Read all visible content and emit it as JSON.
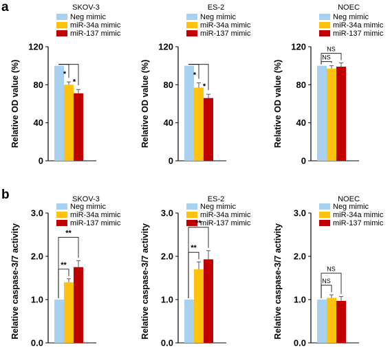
{
  "panel_labels": [
    "a",
    "b"
  ],
  "chart_data": [
    {
      "type": "bar",
      "panel": "a",
      "title": "SKOV-3",
      "ylabel": "Relative OD value (%)",
      "ylim": [
        0,
        120
      ],
      "yticks": [
        "0",
        "40",
        "80",
        "120"
      ],
      "tick_values": [
        0,
        40,
        80,
        120
      ],
      "legend": [
        "Neg mimic",
        "miR-34a mimic",
        "miR-137 mimic"
      ],
      "series": [
        {
          "name": "Neg mimic",
          "values": [
            100
          ],
          "error": [
            0
          ]
        },
        {
          "name": "miR-34a mimic",
          "values": [
            80
          ],
          "error": [
            3
          ]
        },
        {
          "name": "miR-137 mimic",
          "values": [
            71
          ],
          "error": [
            4
          ]
        }
      ],
      "annotations": [
        {
          "text": "*",
          "from": 0,
          "to": 1
        },
        {
          "text": "*",
          "from": 0,
          "to": 2
        }
      ]
    },
    {
      "type": "bar",
      "panel": "a",
      "title": "ES-2",
      "ylabel": "Relative OD value (%)",
      "ylim": [
        0,
        120
      ],
      "yticks": [
        "0",
        "40",
        "80",
        "120"
      ],
      "tick_values": [
        0,
        40,
        80,
        120
      ],
      "legend": [
        "Neg mimic",
        "miR-34a mimic",
        "miR-137 mimic"
      ],
      "series": [
        {
          "name": "Neg mimic",
          "values": [
            100
          ],
          "error": [
            0
          ]
        },
        {
          "name": "miR-34a mimic",
          "values": [
            77
          ],
          "error": [
            5
          ]
        },
        {
          "name": "miR-137 mimic",
          "values": [
            66
          ],
          "error": [
            4
          ]
        }
      ],
      "annotations": [
        {
          "text": "*",
          "from": 0,
          "to": 1
        },
        {
          "text": "*",
          "from": 0,
          "to": 2
        }
      ]
    },
    {
      "type": "bar",
      "panel": "a",
      "title": "NOEC",
      "ylabel": "Relative OD value (%)",
      "ylim": [
        0,
        120
      ],
      "yticks": [
        "0",
        "40",
        "80",
        "120"
      ],
      "tick_values": [
        0,
        40,
        80,
        120
      ],
      "legend": [
        "Neg mimic",
        "miR-34a mimic",
        "miR-137 mimic"
      ],
      "series": [
        {
          "name": "Neg mimic",
          "values": [
            100
          ],
          "error": [
            0
          ]
        },
        {
          "name": "miR-34a mimic",
          "values": [
            97
          ],
          "error": [
            3
          ]
        },
        {
          "name": "miR-137 mimic",
          "values": [
            99
          ],
          "error": [
            4
          ]
        }
      ],
      "annotations": [
        {
          "text": "NS",
          "from": 0,
          "to": 1
        },
        {
          "text": "NS",
          "from": 0,
          "to": 2
        }
      ]
    },
    {
      "type": "bar",
      "panel": "b",
      "title": "SKOV-3",
      "ylabel": "Relative caspase-3/7 activity",
      "ylim": [
        0,
        3
      ],
      "yticks": [
        "0.0",
        "1.0",
        "2.0",
        "3.0"
      ],
      "tick_values": [
        0,
        1,
        2,
        3
      ],
      "legend": [
        "Neg mimic",
        "miR-34a mimic",
        "miR-137 mimic"
      ],
      "series": [
        {
          "name": "Neg mimic",
          "values": [
            1.0
          ],
          "error": [
            0
          ]
        },
        {
          "name": "miR-34a mimic",
          "values": [
            1.4
          ],
          "error": [
            0.08
          ]
        },
        {
          "name": "miR-137 mimic",
          "values": [
            1.75
          ],
          "error": [
            0.15
          ]
        }
      ],
      "annotations": [
        {
          "text": "**",
          "from": 0,
          "to": 1
        },
        {
          "text": "**",
          "from": 0,
          "to": 2
        }
      ]
    },
    {
      "type": "bar",
      "panel": "b",
      "title": "ES-2",
      "ylabel": "Relative caspase-3/7 activity",
      "ylim": [
        0,
        3
      ],
      "yticks": [
        "0.0",
        "1.0",
        "2.0",
        "3.0"
      ],
      "tick_values": [
        0,
        1,
        2,
        3
      ],
      "legend": [
        "Neg mimic",
        "miR-34a mimic",
        "miR-137 mimic"
      ],
      "series": [
        {
          "name": "Neg mimic",
          "values": [
            1.0
          ],
          "error": [
            0
          ]
        },
        {
          "name": "miR-34a mimic",
          "values": [
            1.7
          ],
          "error": [
            0.17
          ]
        },
        {
          "name": "miR-137 mimic",
          "values": [
            1.93
          ],
          "error": [
            0.2
          ]
        }
      ],
      "annotations": [
        {
          "text": "**",
          "from": 0,
          "to": 1
        },
        {
          "text": "**",
          "from": 0,
          "to": 2
        }
      ]
    },
    {
      "type": "bar",
      "panel": "b",
      "title": "NOEC",
      "ylabel": "Relative caspase-3/7 activity",
      "ylim": [
        0,
        3
      ],
      "yticks": [
        "0.0",
        "1.0",
        "2.0",
        "3.0"
      ],
      "tick_values": [
        0,
        1,
        2,
        3
      ],
      "legend": [
        "Neg mimic",
        "miR-34a mimic",
        "miR-137 mimic"
      ],
      "series": [
        {
          "name": "Neg mimic",
          "values": [
            1.0
          ],
          "error": [
            0
          ]
        },
        {
          "name": "miR-34a mimic",
          "values": [
            1.04
          ],
          "error": [
            0.07
          ]
        },
        {
          "name": "miR-137 mimic",
          "values": [
            0.97
          ],
          "error": [
            0.1
          ]
        }
      ],
      "annotations": [
        {
          "text": "NS",
          "from": 0,
          "to": 1
        },
        {
          "text": "NS",
          "from": 0,
          "to": 2
        }
      ]
    }
  ],
  "colors": {
    "neg": "#a8d1f0",
    "mir34a": "#ffc20e",
    "mir137": "#c00000"
  }
}
